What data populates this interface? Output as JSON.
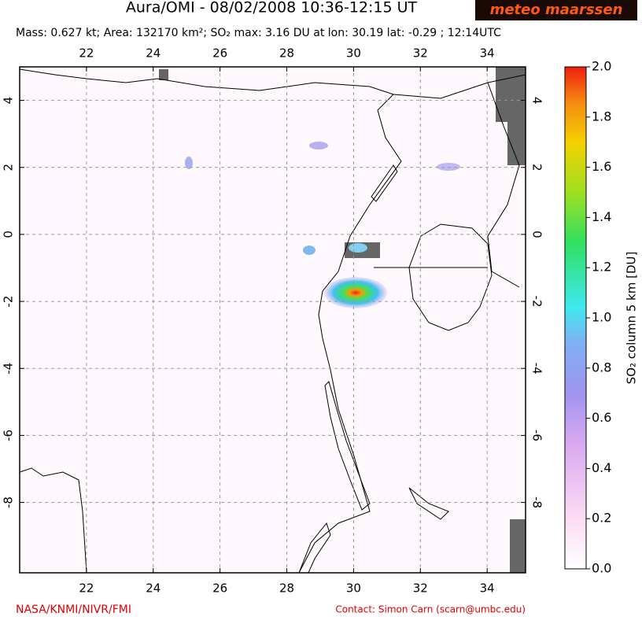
{
  "chart_data": {
    "type": "map",
    "title": "Aura/OMI - 08/02/2008 10:36-12:15 UT",
    "subtitle": "Mass: 0.627 kt; Area: 132170 km²; SO₂ max: 3.16 DU at lon: 30.19 lat: -0.29 ; 12:14UTC",
    "logo": "meteo maarssen",
    "xlim": [
      20,
      35.15
    ],
    "ylim": [
      -10.1,
      5
    ],
    "xticks": [
      22,
      24,
      26,
      28,
      30,
      32,
      34
    ],
    "yticks": [
      4,
      2,
      0,
      -2,
      -4,
      -6,
      -8
    ],
    "grid": true,
    "colorbar": {
      "label": "SO₂ column 5 km [DU]",
      "lim": [
        0,
        2
      ],
      "ticks": [
        {
          "value": 0,
          "label": "0.0"
        },
        {
          "value": 0.2,
          "label": "0.2"
        },
        {
          "value": 0.4,
          "label": "0.4"
        },
        {
          "value": 0.6,
          "label": "0.6"
        },
        {
          "value": 0.8,
          "label": "0.8"
        },
        {
          "value": 1,
          "label": "1.0"
        },
        {
          "value": 1.2,
          "label": "1.2"
        },
        {
          "value": 1.4,
          "label": "1.4"
        },
        {
          "value": 1.6,
          "label": "1.6"
        },
        {
          "value": 1.8,
          "label": "1.8"
        },
        {
          "value": 2,
          "label": "2.0"
        }
      ]
    },
    "credit": "NASA/KNMI/NIVR/FMI",
    "contact": "Contact: Simon Carn (scarn@umbc.edu)"
  }
}
